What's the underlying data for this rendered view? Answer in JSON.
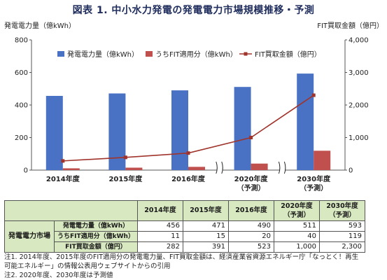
{
  "title": "図表 1.  中小水力発電の発電電力市場規模推移・予測",
  "chart_data": {
    "type": "bar+line",
    "categories": [
      "2014年度",
      "2015年度",
      "2016年度",
      "2020年度\n（予測）",
      "2030年度\n（予測）"
    ],
    "ylabel": "発電電力量（億kWh）",
    "y2label": "FIT買取金額（億円）",
    "ylim": [
      0,
      800
    ],
    "y2lim": [
      0,
      4000
    ],
    "yticks": [
      "0",
      "200",
      "400",
      "600",
      "800"
    ],
    "y2ticks": [
      "0",
      "1,000",
      "2,000",
      "3,000",
      "4,000"
    ],
    "series": [
      {
        "name": "発電電力量（億kWh）",
        "type": "bar",
        "axis": "left",
        "color": "#4a72c4",
        "values": [
          456,
          471,
          490,
          511,
          593
        ]
      },
      {
        "name": "うちFIT適用分（億kWh）",
        "type": "bar",
        "axis": "left",
        "color": "#c0504d",
        "values": [
          11,
          15,
          20,
          40,
          119
        ]
      },
      {
        "name": "FIT買取金額（億円）",
        "type": "line",
        "axis": "right",
        "color": "#a0342c",
        "values": [
          282,
          391,
          523,
          1000,
          2300
        ]
      }
    ],
    "legend_position": "top",
    "grid": false
  },
  "table": {
    "group_label": "発電電力市場",
    "headers": [
      "2014年度",
      "2015年度",
      "2016年度",
      "2020年度\n（予測）",
      "2030年度\n（予測）"
    ],
    "rows": [
      {
        "label": "発電電力量（億kWh）",
        "cells": [
          "456",
          "471",
          "490",
          "511",
          "593"
        ]
      },
      {
        "label": "うちFIT適用分（億kWh）",
        "cells": [
          "11",
          "15",
          "20",
          "40",
          "119"
        ]
      },
      {
        "label": "FIT買取金額（億円）",
        "cells": [
          "282",
          "391",
          "523",
          "1,000",
          "2,300"
        ]
      }
    ]
  },
  "notes": {
    "line1": "注1. 2014年度、2015年度のFIT適用分の発電電力量、FIT買取金額は、経済産業省資源エネルギー庁「なっとく！再生",
    "line2": "可能エネルギー」の情報公表用ウェブサイトからの引用",
    "line3": "注2. 2020年度、2030年度は予測値"
  }
}
